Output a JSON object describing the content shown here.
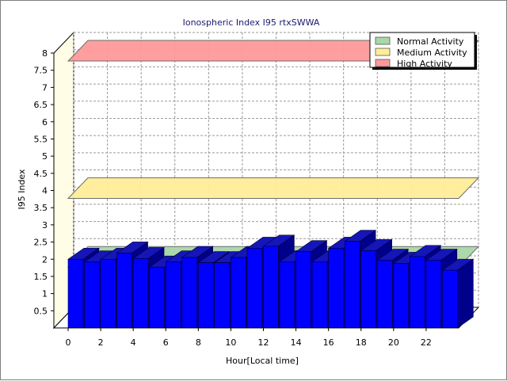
{
  "chart_data": {
    "type": "bar",
    "title": "Ionospheric Index I95 rtxSWWA",
    "xlabel": "Hour[Local time]",
    "ylabel": "I95 Index",
    "ylim": [
      0,
      8
    ],
    "yticks": [
      0.5,
      1,
      1.5,
      2,
      2.5,
      3,
      3.5,
      4,
      4.5,
      5,
      5.5,
      6,
      6.5,
      7,
      7.5,
      8
    ],
    "xticks": [
      0,
      2,
      4,
      6,
      8,
      10,
      12,
      14,
      16,
      18,
      20,
      22
    ],
    "xlim": [
      0,
      24
    ],
    "grid": true,
    "legend_position": "top-right",
    "bar_color": "#0000ff",
    "series": [
      {
        "x": [
          0,
          1,
          2,
          3,
          4,
          5,
          6,
          7,
          8,
          9,
          10,
          11,
          12,
          13,
          14,
          15,
          16,
          17,
          18,
          19,
          20,
          21,
          22,
          23
        ],
        "values": [
          2.0,
          1.92,
          2.0,
          2.18,
          2.02,
          1.77,
          1.92,
          2.05,
          1.9,
          1.9,
          2.05,
          2.32,
          2.38,
          1.93,
          2.22,
          1.93,
          2.32,
          2.52,
          2.25,
          1.97,
          1.88,
          2.08,
          1.97,
          1.68
        ]
      }
    ],
    "bands": [
      {
        "name": "Normal Activity",
        "level": 2.0,
        "color": "#a8d8a8"
      },
      {
        "name": "Medium Activity",
        "level": 4.0,
        "color": "#ffee99"
      },
      {
        "name": "High Activity",
        "level": 8.0,
        "color": "#ff9999"
      }
    ]
  }
}
